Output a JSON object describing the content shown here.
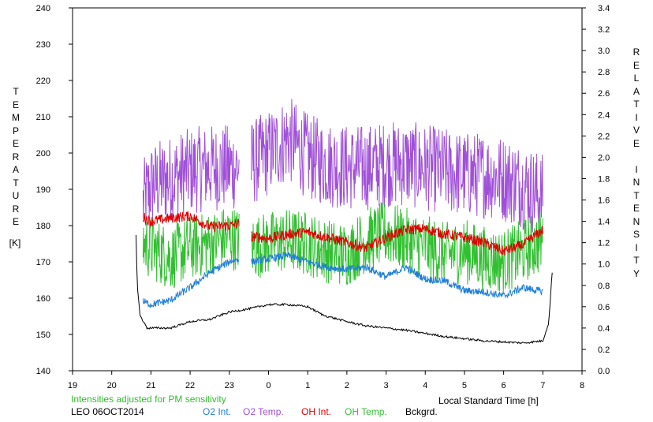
{
  "chart_data": {
    "type": "line",
    "title": "",
    "xlabel": "Local Standard Time [h]",
    "ylabel_left": "TEMPERATURE",
    "ylabel_left_unit": "[K]",
    "ylabel_right": "RELATIVE INTENSITY",
    "x_ticks": [
      "19",
      "20",
      "21",
      "22",
      "23",
      "0",
      "1",
      "2",
      "3",
      "4",
      "5",
      "6",
      "7",
      "8"
    ],
    "x_range": [
      19,
      32
    ],
    "ylim_left": [
      140,
      240
    ],
    "yticks_left": [
      140,
      150,
      160,
      170,
      180,
      190,
      200,
      210,
      220,
      230,
      240
    ],
    "ylim_right": [
      0.0,
      3.4
    ],
    "yticks_right": [
      "0.0",
      "0.2",
      "0.4",
      "0.6",
      "0.8",
      "1.0",
      "1.2",
      "1.4",
      "1.6",
      "1.8",
      "2.0",
      "2.2",
      "2.4",
      "2.6",
      "2.8",
      "3.0",
      "3.2",
      "3.4"
    ],
    "grid": false,
    "note": "Intensities adjusted for PM sensitivity",
    "site_date": "LEO 06OCT2014",
    "legend": [
      {
        "label": "O2 Int.",
        "color": "#1f7fd8"
      },
      {
        "label": "O2 Temp.",
        "color": "#a050d8"
      },
      {
        "label": "OH Int.",
        "color": "#e00000"
      },
      {
        "label": "OH Temp.",
        "color": "#30c030"
      },
      {
        "label": "Bckgrd.",
        "color": "#000000"
      }
    ],
    "note_color": "#30c030",
    "series": [
      {
        "name": "O2 Temp.",
        "axis": "left",
        "color": "#a050d8",
        "noise": 12,
        "gaps": [
          [
            23.25,
            23.55
          ]
        ],
        "points": [
          [
            20.8,
            186
          ],
          [
            21.0,
            191
          ],
          [
            21.5,
            193
          ],
          [
            22.0,
            195
          ],
          [
            22.5,
            196
          ],
          [
            23.0,
            196
          ],
          [
            23.25,
            196
          ],
          [
            23.55,
            197
          ],
          [
            24.0,
            200
          ],
          [
            24.5,
            204
          ],
          [
            25.0,
            199
          ],
          [
            25.5,
            197
          ],
          [
            26.0,
            196
          ],
          [
            26.5,
            196
          ],
          [
            27.0,
            197
          ],
          [
            27.5,
            197
          ],
          [
            28.0,
            196
          ],
          [
            28.5,
            195
          ],
          [
            29.0,
            194
          ],
          [
            29.5,
            194
          ],
          [
            30.0,
            193
          ],
          [
            30.5,
            191
          ],
          [
            31.0,
            188
          ]
        ]
      },
      {
        "name": "OH Temp.",
        "axis": "left",
        "color": "#30c030",
        "noise": 9,
        "gaps": [
          [
            23.25,
            23.55
          ]
        ],
        "points": [
          [
            20.8,
            175
          ],
          [
            21.0,
            174
          ],
          [
            21.5,
            171
          ],
          [
            22.0,
            174
          ],
          [
            22.5,
            175
          ],
          [
            23.0,
            177
          ],
          [
            23.25,
            176
          ],
          [
            23.55,
            174
          ],
          [
            24.0,
            175
          ],
          [
            24.5,
            176
          ],
          [
            25.0,
            175
          ],
          [
            25.5,
            173
          ],
          [
            26.0,
            172
          ],
          [
            26.5,
            176
          ],
          [
            27.0,
            178
          ],
          [
            27.5,
            176
          ],
          [
            28.0,
            174
          ],
          [
            28.5,
            172
          ],
          [
            29.0,
            173
          ],
          [
            29.5,
            171
          ],
          [
            30.0,
            170
          ],
          [
            30.5,
            173
          ],
          [
            31.0,
            176
          ]
        ]
      },
      {
        "name": "OH Int.",
        "axis": "right",
        "color": "#e00000",
        "noise": 0.05,
        "gaps": [
          [
            23.25,
            23.55
          ]
        ],
        "points": [
          [
            20.8,
            1.44
          ],
          [
            21.0,
            1.4
          ],
          [
            21.5,
            1.43
          ],
          [
            22.0,
            1.45
          ],
          [
            22.5,
            1.35
          ],
          [
            23.0,
            1.36
          ],
          [
            23.25,
            1.38
          ],
          [
            23.55,
            1.26
          ],
          [
            24.0,
            1.24
          ],
          [
            24.5,
            1.28
          ],
          [
            25.0,
            1.3
          ],
          [
            25.5,
            1.25
          ],
          [
            26.0,
            1.2
          ],
          [
            26.5,
            1.15
          ],
          [
            27.0,
            1.25
          ],
          [
            27.5,
            1.32
          ],
          [
            28.0,
            1.33
          ],
          [
            28.5,
            1.28
          ],
          [
            29.0,
            1.25
          ],
          [
            29.5,
            1.2
          ],
          [
            30.0,
            1.12
          ],
          [
            30.5,
            1.18
          ],
          [
            31.0,
            1.32
          ]
        ]
      },
      {
        "name": "O2 Int.",
        "axis": "right",
        "color": "#1f7fd8",
        "noise": 0.035,
        "gaps": [
          [
            23.25,
            23.55
          ]
        ],
        "points": [
          [
            20.8,
            0.65
          ],
          [
            21.0,
            0.62
          ],
          [
            21.5,
            0.66
          ],
          [
            22.0,
            0.78
          ],
          [
            22.5,
            0.92
          ],
          [
            23.0,
            1.02
          ],
          [
            23.25,
            1.05
          ],
          [
            23.55,
            1.02
          ],
          [
            24.0,
            1.05
          ],
          [
            24.5,
            1.08
          ],
          [
            25.0,
            1.02
          ],
          [
            25.5,
            0.97
          ],
          [
            26.0,
            0.95
          ],
          [
            26.5,
            0.97
          ],
          [
            27.0,
            0.88
          ],
          [
            27.5,
            0.97
          ],
          [
            28.0,
            0.86
          ],
          [
            28.5,
            0.84
          ],
          [
            29.0,
            0.75
          ],
          [
            29.5,
            0.74
          ],
          [
            30.0,
            0.7
          ],
          [
            30.5,
            0.78
          ],
          [
            31.0,
            0.74
          ]
        ]
      },
      {
        "name": "Bckgrd.",
        "axis": "right",
        "color": "#000000",
        "noise": 0.01,
        "gaps": [],
        "points": [
          [
            20.62,
            1.28
          ],
          [
            20.65,
            0.8
          ],
          [
            20.72,
            0.52
          ],
          [
            20.9,
            0.4
          ],
          [
            21.5,
            0.4
          ],
          [
            22.0,
            0.46
          ],
          [
            22.5,
            0.48
          ],
          [
            23.0,
            0.55
          ],
          [
            23.5,
            0.58
          ],
          [
            24.0,
            0.62
          ],
          [
            24.5,
            0.62
          ],
          [
            25.0,
            0.6
          ],
          [
            25.4,
            0.52
          ],
          [
            26.0,
            0.46
          ],
          [
            26.5,
            0.42
          ],
          [
            27.0,
            0.4
          ],
          [
            27.5,
            0.38
          ],
          [
            28.0,
            0.35
          ],
          [
            28.5,
            0.32
          ],
          [
            29.0,
            0.3
          ],
          [
            29.5,
            0.28
          ],
          [
            30.0,
            0.27
          ],
          [
            30.5,
            0.26
          ],
          [
            31.0,
            0.28
          ],
          [
            31.15,
            0.45
          ],
          [
            31.25,
            0.98
          ]
        ]
      }
    ]
  }
}
